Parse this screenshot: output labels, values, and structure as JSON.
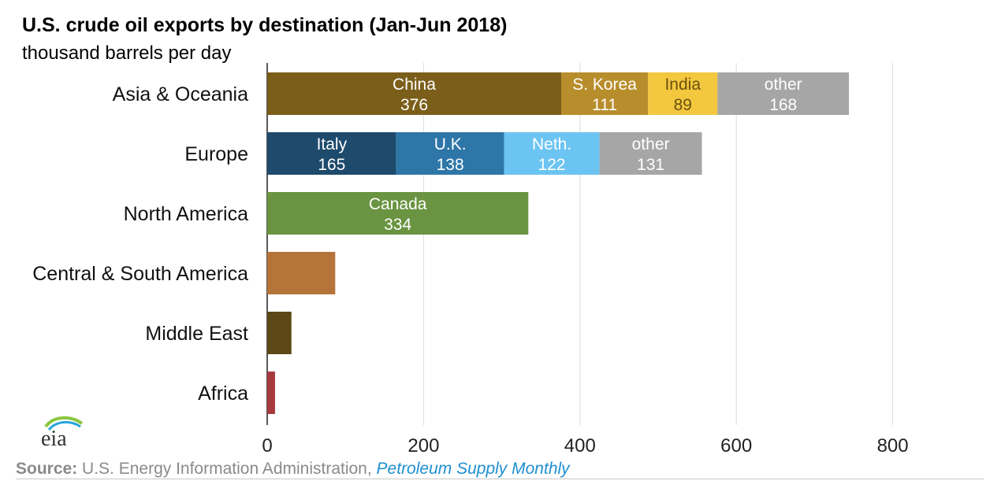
{
  "logo": {
    "text": "eia"
  },
  "chart_data": {
    "type": "bar",
    "orientation": "horizontal",
    "stacked": true,
    "title": "U.S. crude oil exports by destination (Jan-Jun 2018)",
    "subtitle": "thousand barrels per day",
    "categories": [
      "Asia & Oceania",
      "Europe",
      "North America",
      "Central & South America",
      "Middle East",
      "Africa"
    ],
    "xlim": [
      0,
      920
    ],
    "xticks": [
      0,
      200,
      400,
      600,
      800
    ],
    "grid": "vertical",
    "bars": [
      {
        "category": "Asia & Oceania",
        "segments": [
          {
            "label": "China",
            "value": 376,
            "color": "#7b5e1a",
            "text_color": "#ffffff"
          },
          {
            "label": "S. Korea",
            "value": 111,
            "color": "#b88d2c",
            "text_color": "#ffffff"
          },
          {
            "label": "India",
            "value": 89,
            "color": "#f3c73e",
            "text_color": "#6b5210"
          },
          {
            "label": "other",
            "value": 168,
            "color": "#a6a6a6",
            "text_color": "#ffffff"
          }
        ]
      },
      {
        "category": "Europe",
        "segments": [
          {
            "label": "Italy",
            "value": 165,
            "color": "#1e4a6c",
            "text_color": "#ffffff"
          },
          {
            "label": "U.K.",
            "value": 138,
            "color": "#2e76a8",
            "text_color": "#ffffff"
          },
          {
            "label": "Neth.",
            "value": 122,
            "color": "#6cc4f2",
            "text_color": "#ffffff"
          },
          {
            "label": "other",
            "value": 131,
            "color": "#a6a6a6",
            "text_color": "#ffffff"
          }
        ]
      },
      {
        "category": "North America",
        "segments": [
          {
            "label": "Canada",
            "value": 334,
            "color": "#6a9441",
            "text_color": "#ffffff"
          }
        ]
      },
      {
        "category": "Central & South America",
        "segments": [
          {
            "label": "",
            "value": 87,
            "color": "#b4743a"
          }
        ]
      },
      {
        "category": "Middle East",
        "segments": [
          {
            "label": "",
            "value": 31,
            "color": "#5b4816"
          }
        ]
      },
      {
        "category": "Africa",
        "segments": [
          {
            "label": "",
            "value": 10,
            "color": "#a63a3f"
          }
        ]
      }
    ]
  },
  "footer": {
    "source_label": "Source:",
    "source_text": "U.S. Energy Information Administration,",
    "publication": "Petroleum Supply Monthly"
  }
}
